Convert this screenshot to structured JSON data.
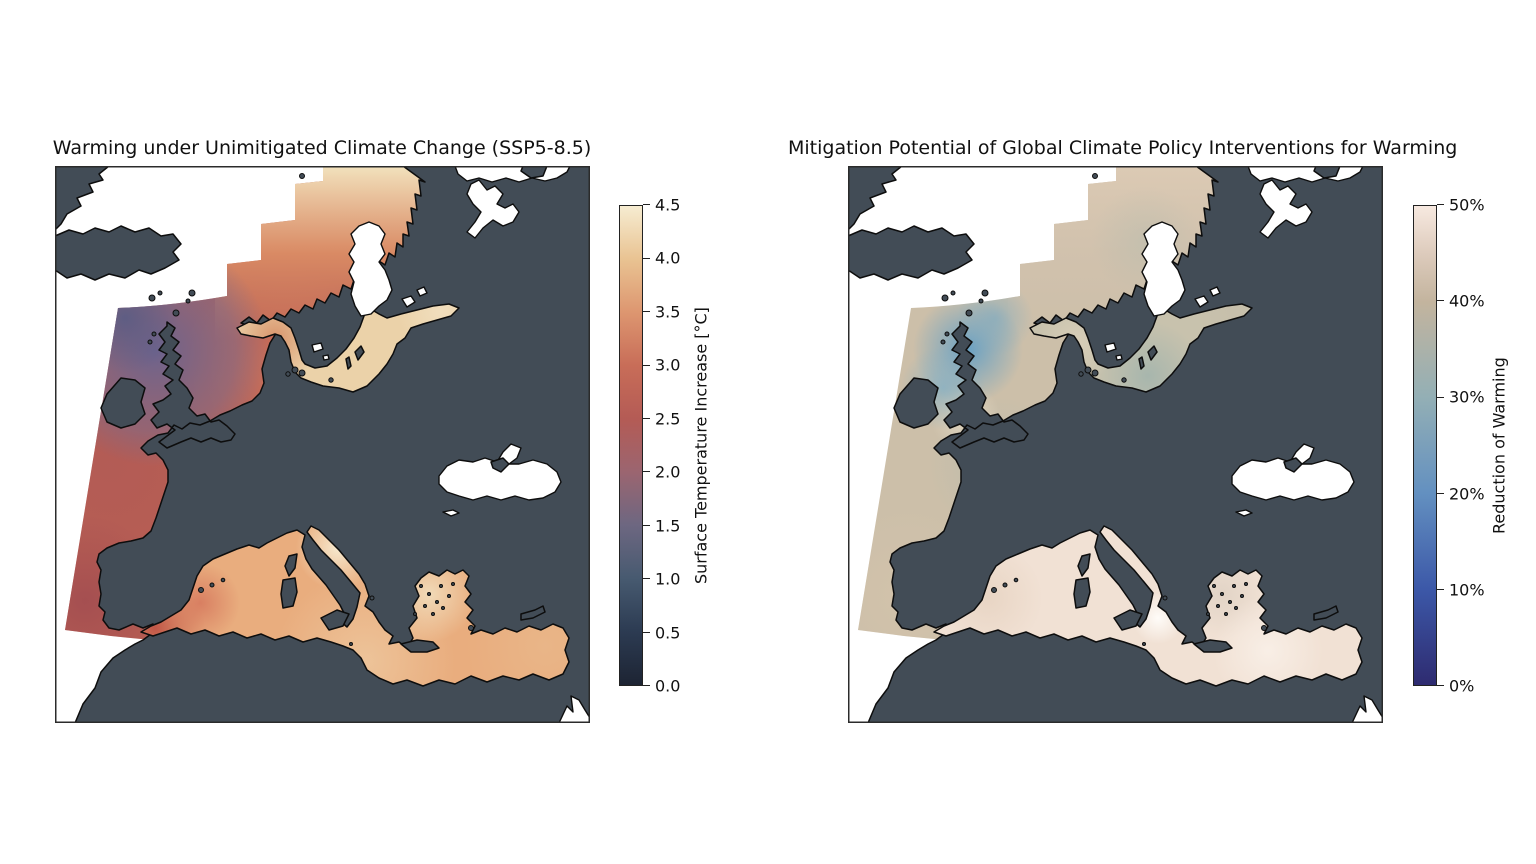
{
  "figure": {
    "background": "#ffffff",
    "kind": "two-panel geographic heatmap figure"
  },
  "palette": {
    "land": "#424c56",
    "coast": "#0d0d0d",
    "outside_domain_sea": "#ffffff",
    "spine": "#2b2b2b"
  },
  "panels": [
    {
      "id": "left",
      "title": "Warming under Unimitigated Climate Change (SSP5-8.5)",
      "colorbar": {
        "label": "Surface Temperature Increase [°C]",
        "min": 0,
        "max": 4.5,
        "ticks": [
          {
            "value": 0.0,
            "label": "0.0"
          },
          {
            "value": 0.5,
            "label": "0.5"
          },
          {
            "value": 1.0,
            "label": "1.0"
          },
          {
            "value": 1.5,
            "label": "1.5"
          },
          {
            "value": 2.0,
            "label": "2.0"
          },
          {
            "value": 2.5,
            "label": "2.5"
          },
          {
            "value": 3.0,
            "label": "3.0"
          },
          {
            "value": 3.5,
            "label": "3.5"
          },
          {
            "value": 4.0,
            "label": "4.0"
          },
          {
            "value": 4.5,
            "label": "4.5"
          }
        ],
        "stops": [
          {
            "value": 0.0,
            "color": "#1d2433"
          },
          {
            "value": 0.5,
            "color": "#2c3b52"
          },
          {
            "value": 1.0,
            "color": "#475a70"
          },
          {
            "value": 1.5,
            "color": "#6d6781"
          },
          {
            "value": 2.0,
            "color": "#9b6570"
          },
          {
            "value": 2.5,
            "color": "#b45b55"
          },
          {
            "value": 3.0,
            "color": "#c86d58"
          },
          {
            "value": 3.5,
            "color": "#dd9670"
          },
          {
            "value": 4.0,
            "color": "#e9c392"
          },
          {
            "value": 4.5,
            "color": "#f6ecd1"
          }
        ]
      }
    },
    {
      "id": "right",
      "title": "Mitigation Potential of Global Climate Policy Interventions for Warming",
      "colorbar": {
        "label": "Reduction of Warming",
        "min": 0,
        "max": 50,
        "ticks": [
          {
            "value": 0,
            "label": "0%"
          },
          {
            "value": 10,
            "label": "10%"
          },
          {
            "value": 20,
            "label": "20%"
          },
          {
            "value": 30,
            "label": "30%"
          },
          {
            "value": 40,
            "label": "40%"
          },
          {
            "value": 50,
            "label": "50%"
          }
        ],
        "stops": [
          {
            "value": 0,
            "color": "#2e2b70"
          },
          {
            "value": 10,
            "color": "#3c58a8"
          },
          {
            "value": 20,
            "color": "#6390c0"
          },
          {
            "value": 30,
            "color": "#93afb5"
          },
          {
            "value": 40,
            "color": "#c3b49e"
          },
          {
            "value": 45,
            "color": "#ddcbbc"
          },
          {
            "value": 50,
            "color": "#f7e9e0"
          }
        ]
      }
    }
  ],
  "chart_data": [
    {
      "type": "heatmap",
      "title": "Warming under Unimitigated Climate Change (SSP5-8.5)",
      "geography": "Europe: North-East Atlantic, North Sea, Baltic and Mediterranean seas (regional model domain); land masked dark, seas outside domain white",
      "colorbar_label": "Surface Temperature Increase [°C]",
      "unit": "°C",
      "range": [
        0.0,
        4.5
      ],
      "ticks": [
        0.0,
        0.5,
        1.0,
        1.5,
        2.0,
        2.5,
        3.0,
        3.5,
        4.0,
        4.5
      ],
      "legend_position": "right colorbar",
      "estimated_regional_values": {
        "NE Atlantic north-west of Scotland": 1.2,
        "open NE Atlantic west of Ireland/Biscay": 2.5,
        "Atlantic off Portugal": 2.2,
        "North Sea": 3.0,
        "Norwegian Sea near northern domain edge": 4.3,
        "Baltic Sea": 4.0,
        "Alboran Sea / Gibraltar": 2.8,
        "Western Mediterranean": 3.4,
        "Central/Eastern Mediterranean": 3.8,
        "Adriatic Sea": 4.4,
        "Aegean Sea": 4.2
      },
      "no_data_regions": [
        "Black Sea",
        "Gulf of Bothnia",
        "White Sea",
        "sea outside model domain"
      ]
    },
    {
      "type": "heatmap",
      "title": "Mitigation Potential of Global Climate Policy Interventions for Warming",
      "geography": "Same domain as left panel",
      "colorbar_label": "Reduction of Warming",
      "unit": "%",
      "range": [
        0,
        50
      ],
      "ticks": [
        0,
        10,
        20,
        30,
        40,
        50
      ],
      "legend_position": "right colorbar",
      "estimated_regional_values": {
        "NE Atlantic north-west of Scotland": 25,
        "open NE Atlantic": 38,
        "North Sea": 40,
        "Norwegian Sea band": 42,
        "Baltic Sea": 33,
        "Western Mediterranean": 46,
        "Central/Eastern Mediterranean": 48,
        "spots south of Sicily": 50
      },
      "no_data_regions": [
        "Black Sea",
        "Gulf of Bothnia",
        "White Sea",
        "sea outside model domain"
      ]
    }
  ]
}
